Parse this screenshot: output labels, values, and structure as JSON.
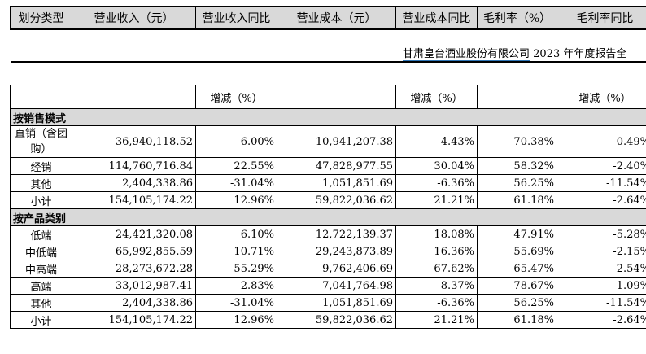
{
  "header": {
    "columns": [
      "划分类型",
      "营业收入（元）",
      "营业收入同比",
      "营业成本（元）",
      "营业成本同比",
      "毛利率（%）",
      "毛利率同比"
    ]
  },
  "report": {
    "company": "甘肃皇台酒业股份有限公司",
    "suffix": " 2023 年年度报告全"
  },
  "table": {
    "sub_header": [
      "",
      "",
      "增减（%）",
      "",
      "增减（%）",
      "",
      "增减（%）"
    ],
    "section1": {
      "title": "按销售模式",
      "rows": [
        [
          "直销（含团购）",
          "36,940,118.52",
          "-6.00%",
          "10,941,207.38",
          "-4.43%",
          "70.38%",
          "-0.49%"
        ],
        [
          "经销",
          "114,760,716.84",
          "22.55%",
          "47,828,977.55",
          "30.04%",
          "58.32%",
          "-2.40%"
        ],
        [
          "其他",
          "2,404,338.86",
          "-31.04%",
          "1,051,851.69",
          "-6.36%",
          "56.25%",
          "-11.54%"
        ],
        [
          "小计",
          "154,105,174.22",
          "12.96%",
          "59,822,036.62",
          "21.21%",
          "61.18%",
          "-2.64%"
        ]
      ]
    },
    "section2": {
      "title": "按产品类别",
      "rows": [
        [
          "低端",
          "24,421,320.08",
          "6.10%",
          "12,722,139.37",
          "18.08%",
          "47.91%",
          "-5.28%"
        ],
        [
          "中低端",
          "65,992,855.59",
          "10.71%",
          "29,243,873.89",
          "16.36%",
          "55.69%",
          "-2.15%"
        ],
        [
          "中高端",
          "28,273,672.28",
          "55.29%",
          "9,762,406.69",
          "67.62%",
          "65.47%",
          "-2.54%"
        ],
        [
          "高端",
          "33,012,987.41",
          "2.83%",
          "7,041,764.98",
          "8.37%",
          "78.67%",
          "-1.09%"
        ],
        [
          "其他",
          "2,404,338.86",
          "-31.04%",
          "1,051,851.69",
          "-6.36%",
          "56.25%",
          "-11.54%"
        ],
        [
          "小计",
          "154,105,174.22",
          "12.96%",
          "59,822,036.62",
          "21.21%",
          "61.18%",
          "-2.64%"
        ]
      ]
    }
  }
}
